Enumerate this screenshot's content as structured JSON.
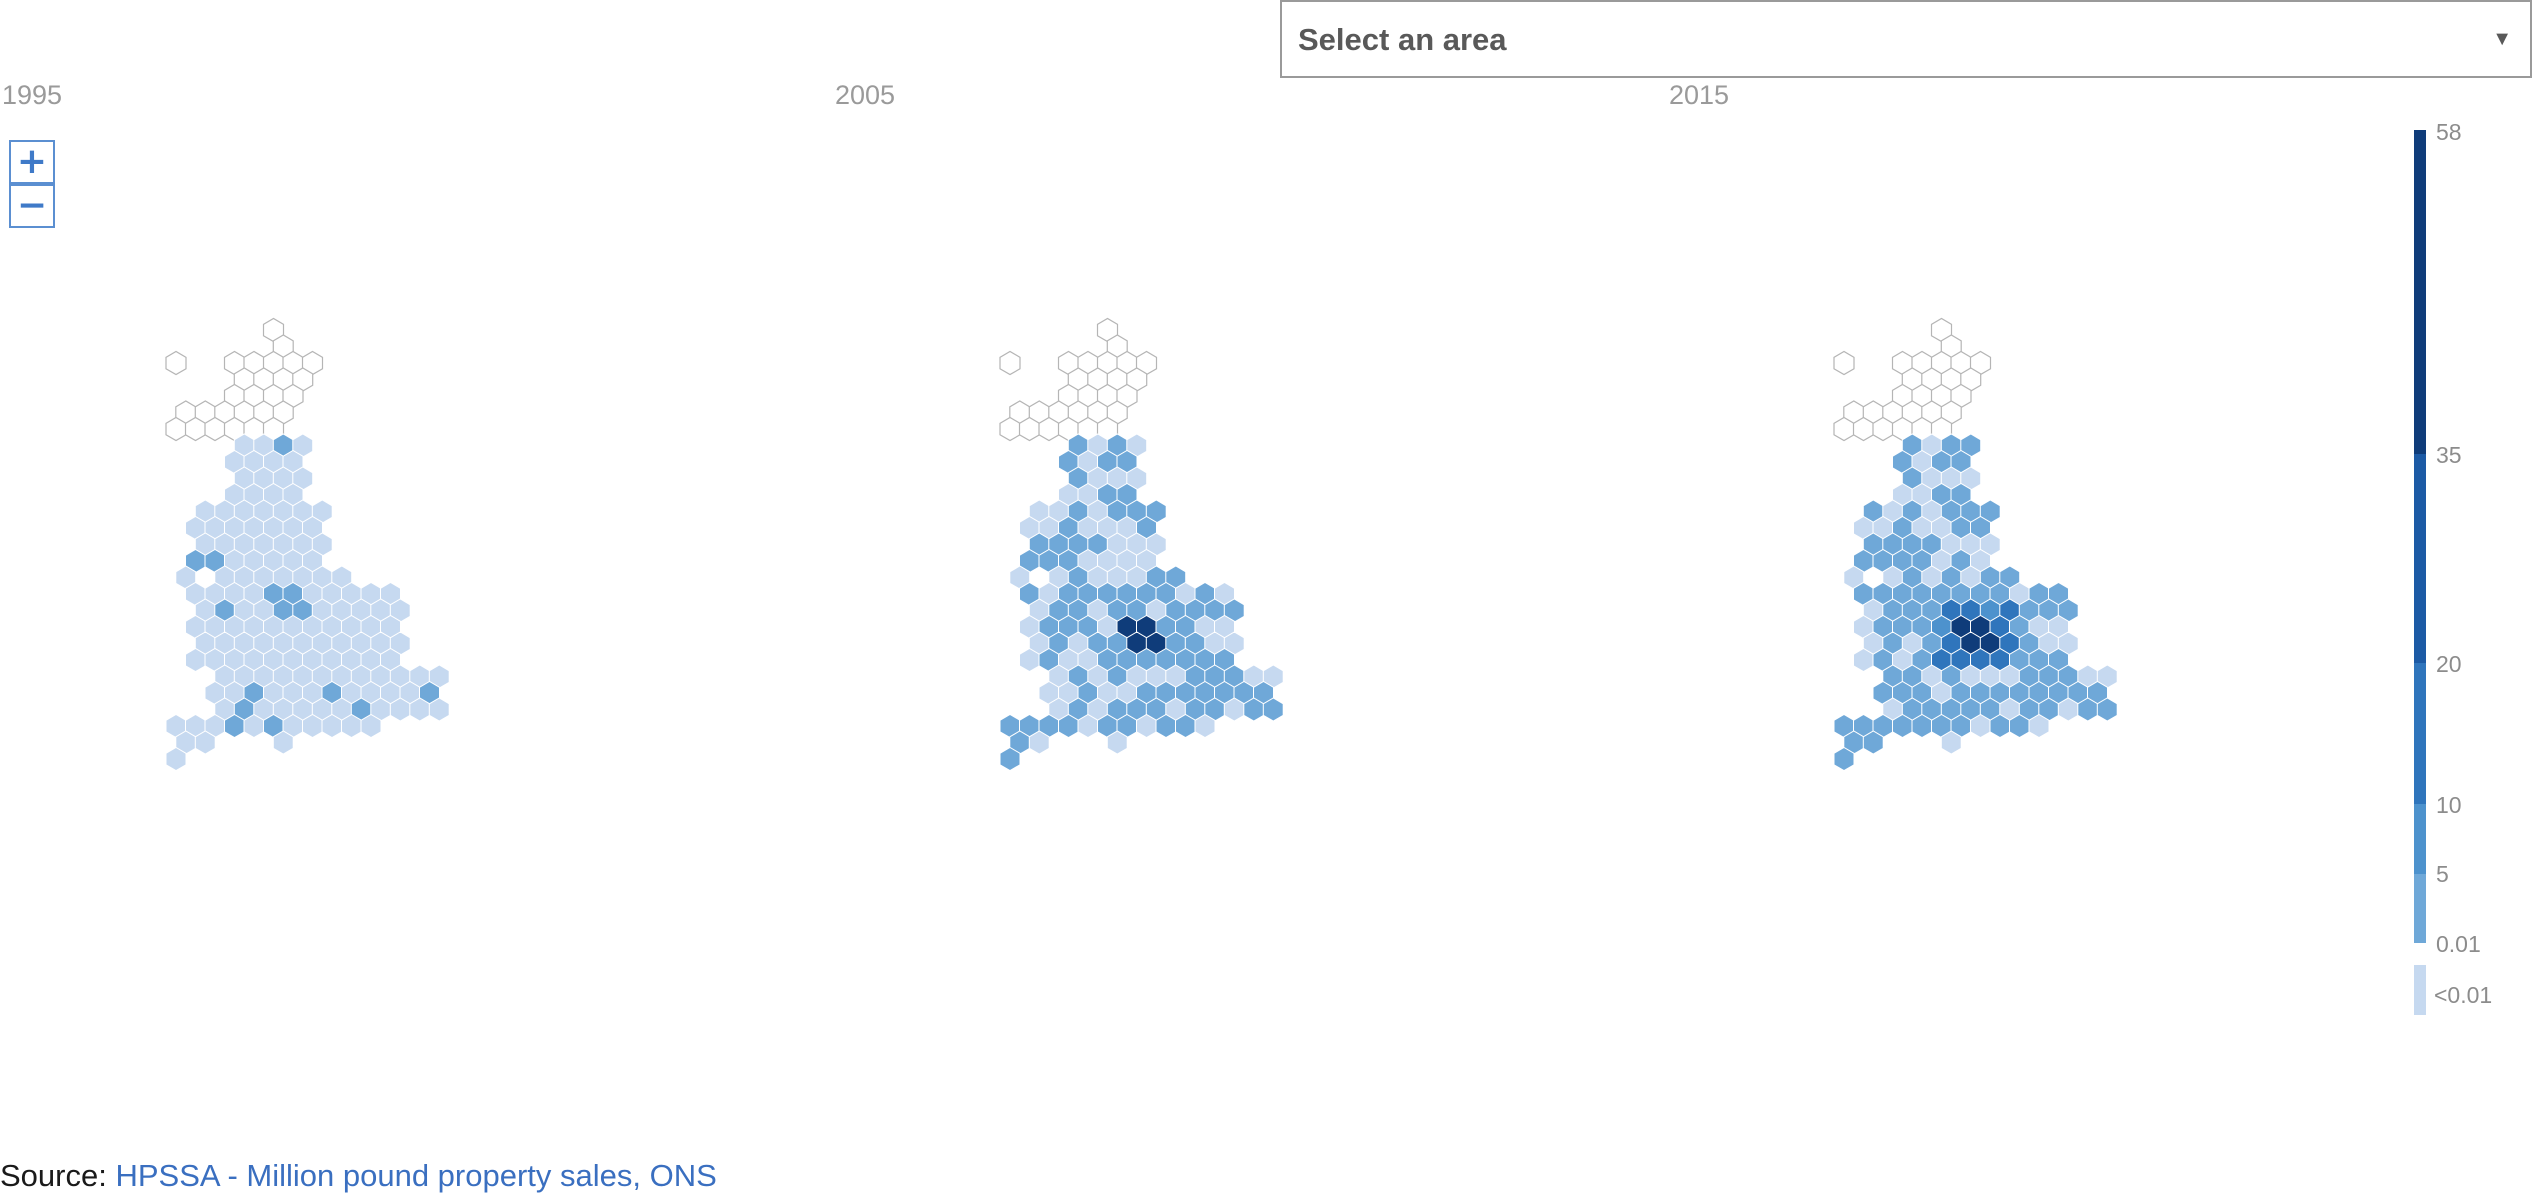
{
  "controls": {
    "area_select": {
      "selected": "Select an area"
    },
    "zoom_in": "+",
    "zoom_out": "−"
  },
  "maps": [
    {
      "year": "1995"
    },
    {
      "year": "2005"
    },
    {
      "year": "2015"
    }
  ],
  "legend": {
    "ticks": [
      "58",
      "35",
      "20",
      "10",
      "5",
      "0.01"
    ],
    "below_label": "<0.01",
    "bands": [
      {
        "from": 0.01,
        "to": 5,
        "color": "#6fa8d8"
      },
      {
        "from": 5,
        "to": 10,
        "color": "#4d92cd"
      },
      {
        "from": 10,
        "to": 20,
        "color": "#2f75bc"
      },
      {
        "from": 20,
        "to": 35,
        "color": "#1c5aa5"
      },
      {
        "from": 35,
        "to": 58,
        "color": "#0f3c7a"
      }
    ],
    "below_color": "#c6d9f0",
    "no_data_color": "#ffffff"
  },
  "source": {
    "prefix": "Source: ",
    "link_text": "HPSSA - Million pound property sales, ONS"
  }
}
